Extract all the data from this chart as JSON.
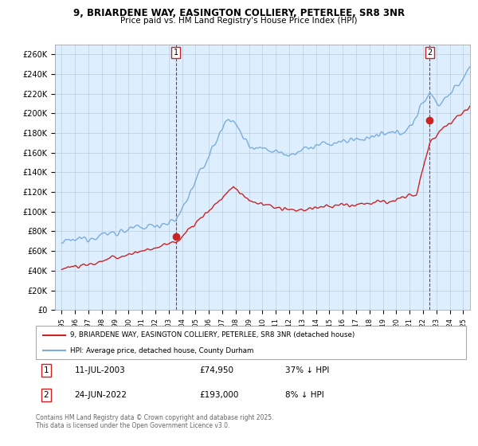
{
  "title_line1": "9, BRIARDENE WAY, EASINGTON COLLIERY, PETERLEE, SR8 3NR",
  "title_line2": "Price paid vs. HM Land Registry's House Price Index (HPI)",
  "ylabel_ticks": [
    "£0",
    "£20K",
    "£40K",
    "£60K",
    "£80K",
    "£100K",
    "£120K",
    "£140K",
    "£160K",
    "£180K",
    "£200K",
    "£220K",
    "£240K",
    "£260K"
  ],
  "ytick_values": [
    0,
    20000,
    40000,
    60000,
    80000,
    100000,
    120000,
    140000,
    160000,
    180000,
    200000,
    220000,
    240000,
    260000
  ],
  "hpi_color": "#7aaddb",
  "price_color": "#cc2222",
  "chart_bg": "#ddeeff",
  "sale1_x": 2003.53,
  "sale1_y": 74950,
  "sale2_x": 2022.48,
  "sale2_y": 193000,
  "sale1_date": "11-JUL-2003",
  "sale1_price": "£74,950",
  "sale1_hpi": "37% ↓ HPI",
  "sale2_date": "24-JUN-2022",
  "sale2_price": "£193,000",
  "sale2_hpi": "8% ↓ HPI",
  "legend_line1": "9, BRIARDENE WAY, EASINGTON COLLIERY, PETERLEE, SR8 3NR (detached house)",
  "legend_line2": "HPI: Average price, detached house, County Durham",
  "footer": "Contains HM Land Registry data © Crown copyright and database right 2025.\nThis data is licensed under the Open Government Licence v3.0.",
  "xlim": [
    1994.5,
    2025.5
  ],
  "ylim": [
    0,
    270000
  ],
  "background_color": "#ffffff",
  "grid_color": "#bbccdd"
}
